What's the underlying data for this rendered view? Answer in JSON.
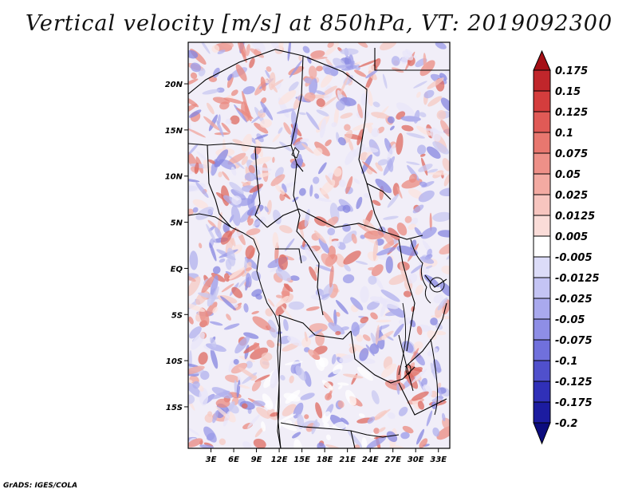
{
  "title": "Vertical velocity [m/s] at 850hPa, VT: 2019092300",
  "credit": "GrADS: IGES/COLA",
  "map": {
    "region": "Central Africa",
    "lon_range": [
      0,
      34.5
    ],
    "lat_range": [
      -19.5,
      24.5
    ],
    "lat_ticks": [
      {
        "value": 20,
        "label": "20N"
      },
      {
        "value": 15,
        "label": "15N"
      },
      {
        "value": 10,
        "label": "10N"
      },
      {
        "value": 5,
        "label": "5N"
      },
      {
        "value": 0,
        "label": "EQ"
      },
      {
        "value": -5,
        "label": "5S"
      },
      {
        "value": -10,
        "label": "10S"
      },
      {
        "value": -15,
        "label": "15S"
      }
    ],
    "lon_ticks": [
      {
        "value": 3,
        "label": "3E"
      },
      {
        "value": 6,
        "label": "6E"
      },
      {
        "value": 9,
        "label": "9E"
      },
      {
        "value": 12,
        "label": "12E"
      },
      {
        "value": 15,
        "label": "15E"
      },
      {
        "value": 18,
        "label": "18E"
      },
      {
        "value": 21,
        "label": "21E"
      },
      {
        "value": 24,
        "label": "24E"
      },
      {
        "value": 27,
        "label": "27E"
      },
      {
        "value": 30,
        "label": "30E"
      },
      {
        "value": 33,
        "label": "33E"
      }
    ]
  },
  "colorbar": {
    "labels": [
      "0.175",
      "0.15",
      "0.125",
      "0.1",
      "0.075",
      "0.05",
      "0.025",
      "0.0125",
      "0.005",
      "-0.005",
      "-0.0125",
      "-0.025",
      "-0.05",
      "-0.075",
      "-0.1",
      "-0.125",
      "-0.175",
      "-0.2"
    ],
    "colors": [
      "#a50f15",
      "#c0262b",
      "#d43d3d",
      "#e05a56",
      "#e8776f",
      "#ee9088",
      "#f3aaa2",
      "#f7c5bf",
      "#fadcd8",
      "#ffffff",
      "#dcdcf8",
      "#c4c4f4",
      "#a9a9ee",
      "#8e8ee6",
      "#7070dc",
      "#5050cc",
      "#3030b8",
      "#1c1ca0",
      "#0c0c7e"
    ]
  }
}
